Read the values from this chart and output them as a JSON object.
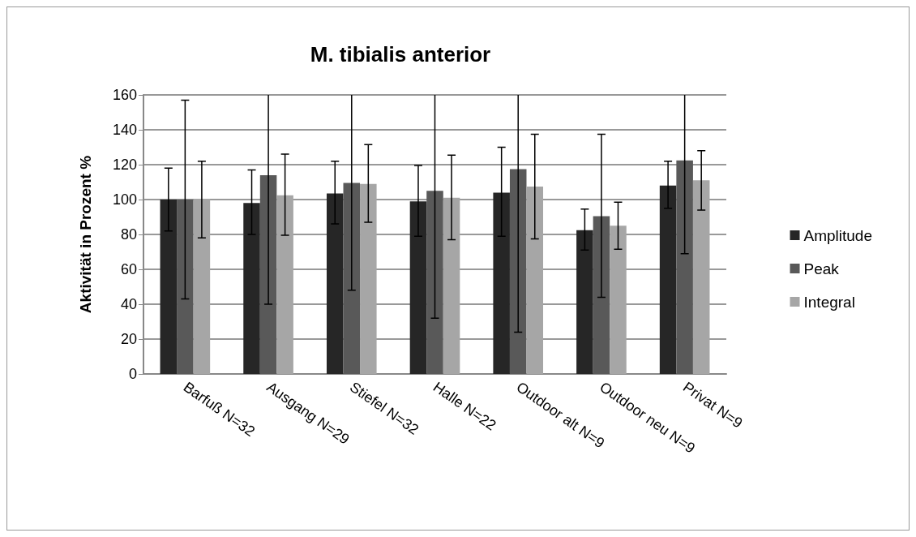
{
  "chart_data": {
    "type": "bar",
    "title": "M. tibialis anterior",
    "ylabel": "Aktivität in Prozent %",
    "categories": [
      "Barfuß N=32",
      "Ausgang N=29",
      "Stiefel N=32",
      "Halle N=22",
      "Outdoor alt N=9",
      "Outdoor neu N=9",
      "Privat N=9"
    ],
    "series": [
      {
        "name": "Amplitude",
        "color": "#262626",
        "values": [
          100,
          98,
          103.5,
          99,
          104,
          82.5,
          108
        ],
        "errors": [
          [
            82,
            118
          ],
          [
            80,
            117
          ],
          [
            86,
            122
          ],
          [
            79,
            119.5
          ],
          [
            79,
            130
          ],
          [
            71,
            94.5
          ],
          [
            95,
            122
          ]
        ]
      },
      {
        "name": "Peak",
        "color": "#595959",
        "values": [
          100,
          114,
          109.5,
          105,
          117.5,
          90.5,
          122.5
        ],
        "errors": [
          [
            43,
            157
          ],
          [
            40,
            160
          ],
          [
            48,
            160
          ],
          [
            32,
            160
          ],
          [
            24,
            160
          ],
          [
            44,
            137.5
          ],
          [
            69,
            160
          ]
        ]
      },
      {
        "name": "Integral",
        "color": "#a6a6a6",
        "values": [
          100.5,
          102.5,
          109,
          101,
          107.5,
          85,
          111
        ],
        "errors": [
          [
            78,
            122
          ],
          [
            79.5,
            126
          ],
          [
            87,
            131.5
          ],
          [
            77,
            125.5
          ],
          [
            77.5,
            137.5
          ],
          [
            71.5,
            98.5
          ],
          [
            94,
            128
          ]
        ]
      }
    ],
    "ylim": [
      0,
      160
    ],
    "yticks": [
      0,
      20,
      40,
      60,
      80,
      100,
      120,
      140,
      160
    ],
    "grid": "y",
    "legend": "right"
  }
}
